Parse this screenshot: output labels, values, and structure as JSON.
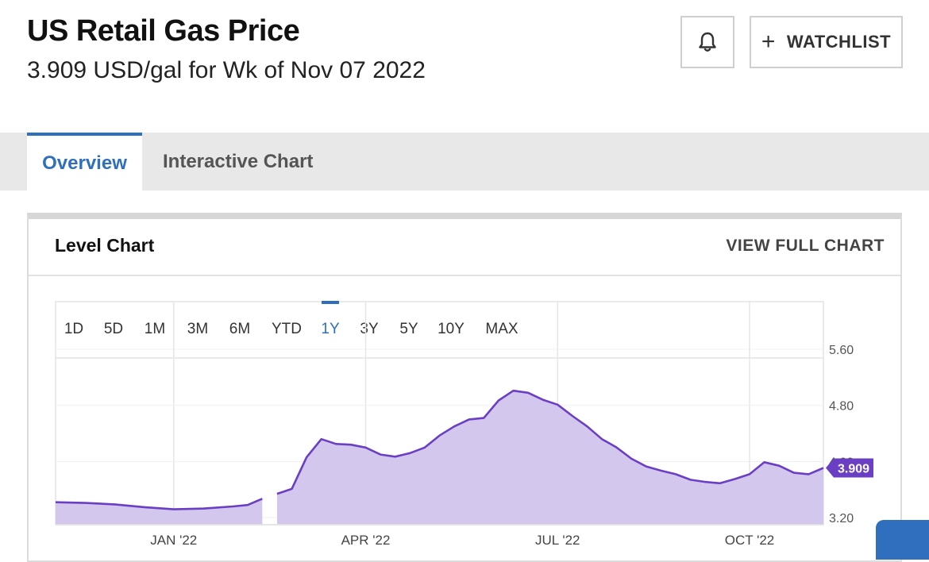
{
  "header": {
    "title": "US Retail Gas Price",
    "subtitle": "3.909 USD/gal for Wk of Nov 07 2022",
    "watchlist_label": "WATCHLIST",
    "watchlist_icon": "plus-icon",
    "alert_icon": "bell-icon"
  },
  "tabs": [
    {
      "label": "Overview",
      "active": true
    },
    {
      "label": "Interactive Chart",
      "active": false
    }
  ],
  "panel": {
    "title": "Level Chart",
    "link_label": "VIEW FULL CHART"
  },
  "colors": {
    "accent": "#2f6fbd",
    "line": "#6a3fc4",
    "area": "#d4c7ee"
  },
  "chart_data": {
    "type": "area",
    "ranges": [
      "1D",
      "5D",
      "1M",
      "3M",
      "6M",
      "YTD",
      "1Y",
      "3Y",
      "5Y",
      "10Y",
      "MAX"
    ],
    "selected_range": "1Y",
    "y_ticks": [
      "5.60",
      "4.80",
      "4.00",
      "3.20"
    ],
    "ylim": [
      3.1,
      5.6
    ],
    "x_ticks": [
      {
        "label": "JAN '22",
        "date": "2022-01-03"
      },
      {
        "label": "APR '22",
        "date": "2022-04-04"
      },
      {
        "label": "JUL '22",
        "date": "2022-07-04"
      },
      {
        "label": "OCT '22",
        "date": "2022-10-03"
      }
    ],
    "xlim": [
      "2021-11-08",
      "2022-11-07"
    ],
    "gap": [
      "2022-02-14",
      "2022-02-21"
    ],
    "last_value": "3.909",
    "series": [
      {
        "points": [
          [
            "2021-11-08",
            3.42
          ],
          [
            "2021-11-22",
            3.41
          ],
          [
            "2021-12-06",
            3.39
          ],
          [
            "2021-12-20",
            3.35
          ],
          [
            "2022-01-03",
            3.32
          ],
          [
            "2022-01-17",
            3.33
          ],
          [
            "2022-01-31",
            3.36
          ],
          [
            "2022-02-07",
            3.38
          ],
          [
            "2022-02-14",
            3.47
          ],
          [
            "2022-02-21",
            3.54
          ],
          [
            "2022-02-28",
            3.61
          ],
          [
            "2022-03-07",
            4.06
          ],
          [
            "2022-03-14",
            4.32
          ],
          [
            "2022-03-21",
            4.25
          ],
          [
            "2022-03-28",
            4.24
          ],
          [
            "2022-04-04",
            4.2
          ],
          [
            "2022-04-11",
            4.1
          ],
          [
            "2022-04-18",
            4.07
          ],
          [
            "2022-04-25",
            4.12
          ],
          [
            "2022-05-02",
            4.2
          ],
          [
            "2022-05-09",
            4.37
          ],
          [
            "2022-05-16",
            4.5
          ],
          [
            "2022-05-23",
            4.6
          ],
          [
            "2022-05-30",
            4.62
          ],
          [
            "2022-06-06",
            4.87
          ],
          [
            "2022-06-13",
            5.01
          ],
          [
            "2022-06-20",
            4.98
          ],
          [
            "2022-06-27",
            4.88
          ],
          [
            "2022-07-04",
            4.81
          ],
          [
            "2022-07-11",
            4.65
          ],
          [
            "2022-07-18",
            4.5
          ],
          [
            "2022-07-25",
            4.32
          ],
          [
            "2022-08-01",
            4.2
          ],
          [
            "2022-08-08",
            4.04
          ],
          [
            "2022-08-15",
            3.93
          ],
          [
            "2022-08-22",
            3.87
          ],
          [
            "2022-08-29",
            3.82
          ],
          [
            "2022-09-05",
            3.74
          ],
          [
            "2022-09-12",
            3.71
          ],
          [
            "2022-09-19",
            3.69
          ],
          [
            "2022-09-26",
            3.75
          ],
          [
            "2022-10-03",
            3.82
          ],
          [
            "2022-10-10",
            3.99
          ],
          [
            "2022-10-17",
            3.94
          ],
          [
            "2022-10-24",
            3.84
          ],
          [
            "2022-10-31",
            3.82
          ],
          [
            "2022-11-07",
            3.909
          ]
        ]
      }
    ]
  }
}
